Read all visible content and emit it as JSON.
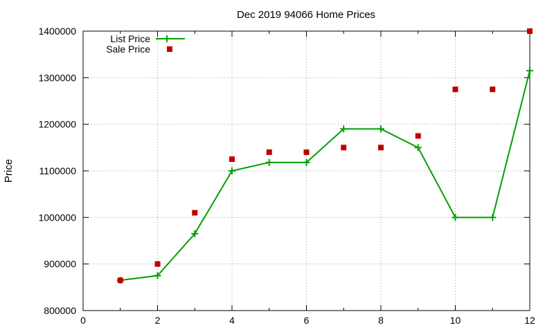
{
  "chart_data": {
    "type": "line",
    "title": "Dec 2019 94066 Home Prices",
    "xlabel": "",
    "ylabel": "Price",
    "xlim": [
      0,
      12
    ],
    "ylim": [
      800000,
      1400000
    ],
    "x_ticks": [
      "0",
      "2",
      "4",
      "6",
      "8",
      "10",
      "12"
    ],
    "y_ticks": [
      "800000",
      "900000",
      "1000000",
      "1100000",
      "1200000",
      "1300000",
      "1400000"
    ],
    "grid": true,
    "legend_position": "top-left",
    "series": [
      {
        "name": "List Price",
        "style": "line-with-plus-markers",
        "color": "#00a000",
        "x": [
          1,
          2,
          3,
          4,
          5,
          6,
          7,
          8,
          9,
          10,
          11,
          12
        ],
        "y": [
          865000,
          875000,
          965000,
          1100000,
          1118000,
          1118000,
          1190000,
          1190000,
          1150000,
          1000000,
          1000000,
          1315000
        ]
      },
      {
        "name": "Sale Price",
        "style": "square-markers",
        "color": "#c00000",
        "x": [
          1,
          2,
          3,
          4,
          5,
          6,
          7,
          8,
          9,
          10,
          11,
          12
        ],
        "y": [
          865000,
          900000,
          1010000,
          1125000,
          1140000,
          1140000,
          1150000,
          1150000,
          1175000,
          1275000,
          1275000,
          1400000
        ]
      }
    ]
  }
}
